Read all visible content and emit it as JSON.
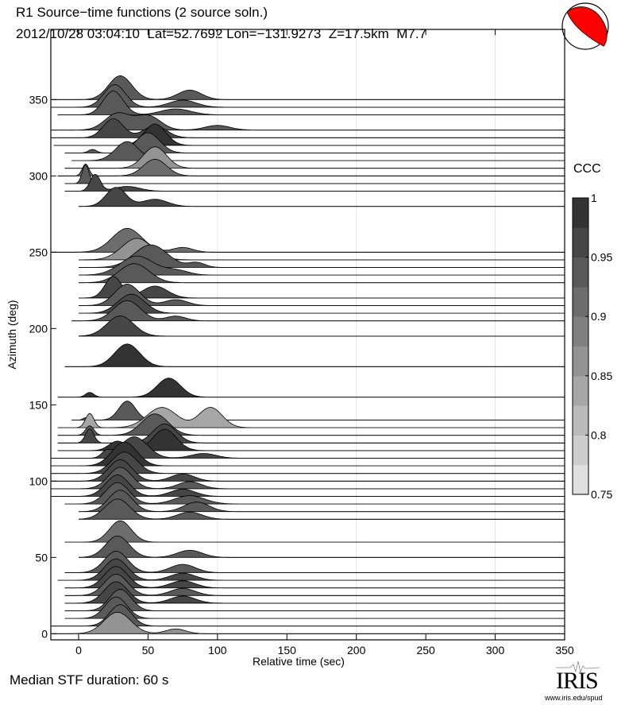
{
  "header": {
    "title": "R1 Source−time functions (2 source soln.)",
    "subtitle": "2012/10/28 03:04:10  Lat=52.7692 Lon=−131.9273  Z=17.5km  M7.7"
  },
  "footer": {
    "median_duration": "Median STF duration: 60 s"
  },
  "logo": {
    "name": "IRIS",
    "url": "www.iris.edu/spud"
  },
  "beachball": {
    "color": "#ff0000"
  },
  "chart_data": {
    "type": "area",
    "xlabel": "Relative time (sec)",
    "ylabel": "Azimuth (deg)",
    "xlim": [
      -20,
      350
    ],
    "ylim": [
      -4,
      396
    ],
    "xticks": [
      0,
      50,
      100,
      150,
      200,
      250,
      300,
      350
    ],
    "yticks": [
      0,
      50,
      100,
      150,
      200,
      250,
      300,
      350
    ],
    "grid_x": [
      100,
      200,
      300
    ],
    "colorbar": {
      "label": "CCC",
      "range": [
        0.75,
        1
      ],
      "ticks": [
        "0.75",
        "0.8",
        "0.85",
        "0.9",
        "0.95",
        "1"
      ],
      "levels": 10
    },
    "traces": [
      {
        "azimuth": 350,
        "ccc": 0.93,
        "start": -20,
        "pulses": [
          [
            30,
            1,
            14
          ],
          [
            80,
            0.4,
            14
          ]
        ]
      },
      {
        "azimuth": 345,
        "ccc": 0.95,
        "start": -20,
        "pulses": [
          [
            26,
            0.95,
            13
          ],
          [
            75,
            0.3,
            16
          ]
        ]
      },
      {
        "azimuth": 340,
        "ccc": 0.93,
        "start": -15,
        "pulses": [
          [
            25,
            1,
            12
          ],
          [
            70,
            0.25,
            18
          ]
        ]
      },
      {
        "azimuth": 330,
        "ccc": 0.95,
        "start": -20,
        "pulses": [
          [
            28,
            0.7,
            15
          ],
          [
            50,
            0.6,
            15
          ],
          [
            100,
            0.2,
            15
          ]
        ]
      },
      {
        "azimuth": 325,
        "ccc": 0.97,
        "start": -20,
        "pulses": [
          [
            25,
            0.8,
            12
          ],
          [
            55,
            0.5,
            14
          ]
        ]
      },
      {
        "azimuth": 320,
        "ccc": 0.99,
        "start": -18,
        "pulses": [
          [
            55,
            0.9,
            13
          ]
        ]
      },
      {
        "azimuth": 315,
        "ccc": 0.95,
        "start": -10,
        "pulses": [
          [
            10,
            0.15,
            5
          ],
          [
            50,
            0.85,
            14
          ]
        ]
      },
      {
        "azimuth": 310,
        "ccc": 0.93,
        "start": -5,
        "pulses": [
          [
            35,
            0.8,
            14
          ]
        ]
      },
      {
        "azimuth": 305,
        "ccc": 0.87,
        "start": -10,
        "pulses": [
          [
            55,
            0.9,
            14
          ]
        ]
      },
      {
        "azimuth": 300,
        "ccc": 0.9,
        "start": -15,
        "pulses": [
          [
            5,
            0.5,
            4
          ],
          [
            55,
            0.7,
            14
          ]
        ]
      },
      {
        "azimuth": 295,
        "ccc": 0.93,
        "start": -10,
        "pulses": [
          [
            5,
            0.8,
            4
          ]
        ]
      },
      {
        "azimuth": 290,
        "ccc": 0.97,
        "start": -10,
        "pulses": [
          [
            12,
            0.7,
            6
          ],
          [
            35,
            0.2,
            15
          ]
        ]
      },
      {
        "azimuth": 280,
        "ccc": 0.97,
        "start": 0,
        "pulses": [
          [
            27,
            0.8,
            12
          ],
          [
            55,
            0.3,
            15
          ]
        ]
      },
      {
        "azimuth": 250,
        "ccc": 0.9,
        "start": -20,
        "pulses": [
          [
            35,
            1,
            18
          ],
          [
            75,
            0.2,
            12
          ]
        ]
      },
      {
        "azimuth": 245,
        "ccc": 0.87,
        "start": 0,
        "pulses": [
          [
            42,
            0.9,
            18
          ]
        ]
      },
      {
        "azimuth": 240,
        "ccc": 0.93,
        "start": 0,
        "pulses": [
          [
            52,
            0.95,
            20
          ],
          [
            85,
            0.2,
            10
          ]
        ]
      },
      {
        "azimuth": 235,
        "ccc": 0.95,
        "start": 0,
        "pulses": [
          [
            42,
            0.8,
            20
          ],
          [
            70,
            0.2,
            15
          ]
        ]
      },
      {
        "azimuth": 230,
        "ccc": 0.93,
        "start": 0,
        "pulses": [
          [
            40,
            0.8,
            18
          ]
        ]
      },
      {
        "azimuth": 220,
        "ccc": 0.97,
        "start": 0,
        "pulses": [
          [
            25,
            0.9,
            10
          ],
          [
            55,
            0.5,
            15
          ]
        ]
      },
      {
        "azimuth": 215,
        "ccc": 0.95,
        "start": 0,
        "pulses": [
          [
            35,
            0.9,
            15
          ],
          [
            70,
            0.25,
            14
          ]
        ]
      },
      {
        "azimuth": 210,
        "ccc": 0.97,
        "start": 0,
        "pulses": [
          [
            38,
            0.8,
            16
          ]
        ]
      },
      {
        "azimuth": 205,
        "ccc": 0.93,
        "start": -5,
        "pulses": [
          [
            35,
            0.85,
            16
          ],
          [
            70,
            0.2,
            12
          ]
        ]
      },
      {
        "azimuth": 195,
        "ccc": 0.97,
        "start": 0,
        "pulses": [
          [
            30,
            0.85,
            16
          ]
        ]
      },
      {
        "azimuth": 175,
        "ccc": 0.99,
        "start": -10,
        "pulses": [
          [
            35,
            0.95,
            15
          ]
        ]
      },
      {
        "azimuth": 155,
        "ccc": 0.99,
        "start": -15,
        "pulses": [
          [
            8,
            0.2,
            5
          ],
          [
            65,
            0.8,
            14
          ]
        ]
      },
      {
        "azimuth": 140,
        "ccc": 0.95,
        "start": -5,
        "pulses": [
          [
            5,
            0.1,
            3
          ],
          [
            35,
            0.8,
            10
          ]
        ]
      },
      {
        "azimuth": 135,
        "ccc": 0.85,
        "start": -15,
        "pulses": [
          [
            8,
            0.6,
            5
          ],
          [
            60,
            0.85,
            18
          ],
          [
            95,
            0.85,
            14
          ]
        ]
      },
      {
        "azimuth": 130,
        "ccc": 0.95,
        "start": -15,
        "pulses": [
          [
            8,
            0.4,
            5
          ],
          [
            55,
            0.9,
            16
          ]
        ]
      },
      {
        "azimuth": 125,
        "ccc": 0.97,
        "start": -15,
        "pulses": [
          [
            8,
            0.6,
            5
          ],
          [
            62,
            0.8,
            14
          ]
        ]
      },
      {
        "azimuth": 120,
        "ccc": 0.99,
        "start": -15,
        "pulses": [
          [
            28,
            0.4,
            10
          ],
          [
            62,
            0.9,
            14
          ]
        ]
      },
      {
        "azimuth": 115,
        "ccc": 0.97,
        "start": -20,
        "pulses": [
          [
            20,
            0.25,
            6
          ],
          [
            40,
            0.9,
            16
          ],
          [
            90,
            0.2,
            15
          ]
        ]
      },
      {
        "azimuth": 110,
        "ccc": 0.99,
        "start": -20,
        "pulses": [
          [
            33,
            1,
            15
          ]
        ]
      },
      {
        "azimuth": 105,
        "ccc": 0.97,
        "start": -20,
        "pulses": [
          [
            33,
            0.9,
            15
          ]
        ]
      },
      {
        "azimuth": 100,
        "ccc": 0.97,
        "start": -20,
        "pulses": [
          [
            30,
            0.9,
            14
          ],
          [
            75,
            0.3,
            14
          ]
        ]
      },
      {
        "azimuth": 95,
        "ccc": 0.95,
        "start": -20,
        "pulses": [
          [
            30,
            0.9,
            14
          ],
          [
            80,
            0.3,
            14
          ]
        ]
      },
      {
        "azimuth": 90,
        "ccc": 0.97,
        "start": -20,
        "pulses": [
          [
            28,
            0.9,
            14
          ],
          [
            75,
            0.3,
            15
          ]
        ]
      },
      {
        "azimuth": 85,
        "ccc": 0.95,
        "start": -10,
        "pulses": [
          [
            28,
            0.9,
            14
          ],
          [
            80,
            0.35,
            18
          ]
        ]
      },
      {
        "azimuth": 80,
        "ccc": 0.95,
        "start": 0,
        "pulses": [
          [
            30,
            0.9,
            14
          ],
          [
            85,
            0.4,
            15
          ]
        ]
      },
      {
        "azimuth": 75,
        "ccc": 0.93,
        "start": 0,
        "pulses": [
          [
            28,
            0.85,
            15
          ],
          [
            80,
            0.3,
            15
          ]
        ]
      },
      {
        "azimuth": 60,
        "ccc": 0.9,
        "start": -10,
        "pulses": [
          [
            30,
            0.9,
            13
          ]
        ]
      },
      {
        "azimuth": 50,
        "ccc": 0.95,
        "start": 0,
        "pulses": [
          [
            28,
            0.9,
            14
          ],
          [
            80,
            0.3,
            15
          ]
        ]
      },
      {
        "azimuth": 40,
        "ccc": 0.95,
        "start": -10,
        "pulses": [
          [
            27,
            0.9,
            14
          ],
          [
            75,
            0.35,
            15
          ]
        ]
      },
      {
        "azimuth": 35,
        "ccc": 0.97,
        "start": -15,
        "pulses": [
          [
            27,
            0.9,
            14
          ],
          [
            75,
            0.3,
            15
          ]
        ]
      },
      {
        "azimuth": 30,
        "ccc": 0.97,
        "start": -10,
        "pulses": [
          [
            27,
            0.9,
            14
          ],
          [
            75,
            0.3,
            15
          ]
        ]
      },
      {
        "azimuth": 25,
        "ccc": 0.95,
        "start": -10,
        "pulses": [
          [
            27,
            0.9,
            14
          ],
          [
            75,
            0.3,
            15
          ]
        ]
      },
      {
        "azimuth": 20,
        "ccc": 0.97,
        "start": -10,
        "pulses": [
          [
            27,
            0.9,
            14
          ],
          [
            75,
            0.3,
            15
          ]
        ]
      },
      {
        "azimuth": 15,
        "ccc": 0.93,
        "start": -10,
        "pulses": [
          [
            30,
            0.9,
            13
          ]
        ]
      },
      {
        "azimuth": 10,
        "ccc": 0.95,
        "start": -10,
        "pulses": [
          [
            27,
            0.9,
            13
          ]
        ]
      },
      {
        "azimuth": 5,
        "ccc": 0.93,
        "start": -20,
        "pulses": [
          [
            30,
            0.9,
            13
          ]
        ]
      },
      {
        "azimuth": 0,
        "ccc": 0.87,
        "start": -20,
        "pulses": [
          [
            28,
            0.9,
            16
          ],
          [
            70,
            0.2,
            12
          ]
        ]
      }
    ]
  }
}
